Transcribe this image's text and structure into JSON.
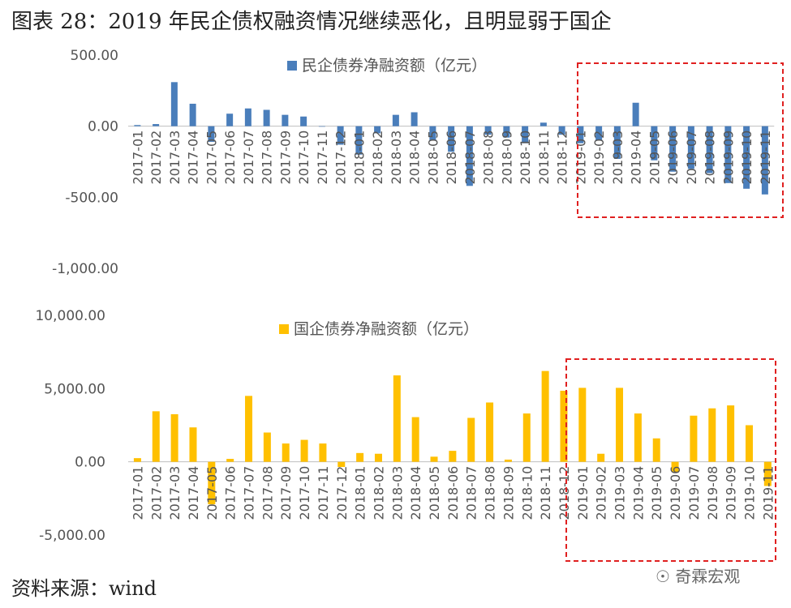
{
  "page": {
    "title": "图表 28：2019 年民企债权融资情况继续恶化，且明显弱于国企",
    "source": "资料来源：wind",
    "watermark": "奇霖宏观"
  },
  "chart_data": [
    {
      "type": "bar",
      "series": [
        {
          "name": "民企债券净融资额（亿元）",
          "color": "#4a7ebb",
          "values": [
            8,
            15,
            310,
            158,
            -110,
            88,
            125,
            115,
            80,
            68,
            0,
            -130,
            -200,
            -50,
            80,
            98,
            -100,
            -180,
            -420,
            -60,
            -80,
            -120,
            25,
            -60,
            -120,
            -100,
            -230,
            165,
            -240,
            -320,
            -300,
            -330,
            -400,
            -440,
            -480
          ]
        }
      ],
      "categories": [
        "2017-01",
        "2017-02",
        "2017-03",
        "2017-04",
        "2017-05",
        "2017-06",
        "2017-07",
        "2017-08",
        "2017-09",
        "2017-10",
        "2017-11",
        "2017-12",
        "2018-01",
        "2018-02",
        "2018-03",
        "2018-04",
        "2018-05",
        "2018-06",
        "2018-07",
        "2018-08",
        "2018-09",
        "2018-10",
        "2018-11",
        "2018-12",
        "2019-01",
        "2019-02",
        "2019-03",
        "2019-04",
        "2019-05",
        "2019-06",
        "2019-07",
        "2019-08",
        "2019-09",
        "2019-10",
        "2019-11"
      ],
      "yticks": [
        "500.00",
        "0.00",
        "-500.00",
        "-1,000.00"
      ],
      "ylim": [
        -1000,
        500
      ],
      "legend_position": "top-center",
      "highlight_box": "2019-01 to 2019-11"
    },
    {
      "type": "bar",
      "series": [
        {
          "name": "国企债券净融资额（亿元）",
          "color": "#ffc000",
          "values": [
            250,
            3450,
            3250,
            2350,
            -2900,
            200,
            4500,
            2000,
            1250,
            1500,
            1250,
            -350,
            600,
            550,
            5900,
            3050,
            350,
            750,
            3000,
            4050,
            150,
            3300,
            6200,
            4850,
            5050,
            550,
            5050,
            3300,
            1600,
            -700,
            3150,
            3650,
            3850,
            2500,
            -1650
          ]
        }
      ],
      "categories": [
        "2017-01",
        "2017-02",
        "2017-03",
        "2017-04",
        "2017-05",
        "2017-06",
        "2017-07",
        "2017-08",
        "2017-09",
        "2017-10",
        "2017-11",
        "2017-12",
        "2018-01",
        "2018-02",
        "2018-03",
        "2018-04",
        "2018-05",
        "2018-06",
        "2018-07",
        "2018-08",
        "2018-09",
        "2018-10",
        "2018-11",
        "2018-12",
        "2019-01",
        "2019-02",
        "2019-03",
        "2019-04",
        "2019-05",
        "2019-06",
        "2019-07",
        "2019-08",
        "2019-09",
        "2019-10",
        "2019-11"
      ],
      "yticks": [
        "10,000.00",
        "5,000.00",
        "0.00",
        "-5,000.00"
      ],
      "ylim": [
        -5000,
        10000
      ],
      "legend_position": "top-center",
      "highlight_box": "2019-01 to 2019-11"
    }
  ]
}
